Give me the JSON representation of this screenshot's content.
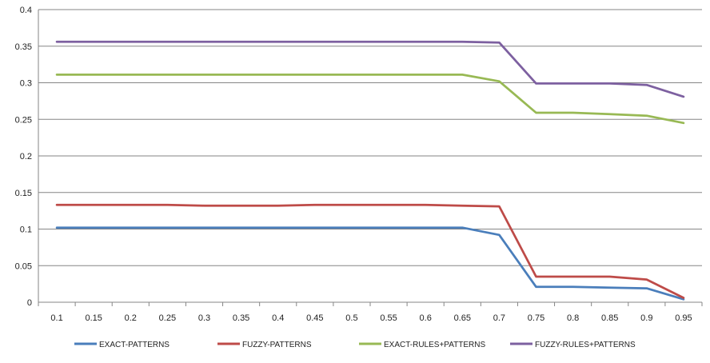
{
  "chart_data": {
    "type": "line",
    "title": "",
    "xlabel": "",
    "ylabel": "",
    "categories": [
      "0.1",
      "0.15",
      "0.2",
      "0.25",
      "0.3",
      "0.35",
      "0.4",
      "0.45",
      "0.5",
      "0.55",
      "0.6",
      "0.65",
      "0.7",
      "0.75",
      "0.8",
      "0.85",
      "0.9",
      "0.95"
    ],
    "ylim": [
      0,
      0.4
    ],
    "yticks": [
      "0",
      "0.05",
      "0.1",
      "0.15",
      "0.2",
      "0.25",
      "0.3",
      "0.35",
      "0.4"
    ],
    "grid": "horizontal",
    "legend_position": "bottom",
    "series": [
      {
        "name": "EXACT-PATTERNS",
        "color": "#4a7ebb",
        "values": [
          0.102,
          0.102,
          0.102,
          0.102,
          0.102,
          0.102,
          0.102,
          0.102,
          0.102,
          0.102,
          0.102,
          0.102,
          0.092,
          0.021,
          0.021,
          0.02,
          0.019,
          0.004
        ]
      },
      {
        "name": "FUZZY-PATTERNS",
        "color": "#be4b48",
        "values": [
          0.133,
          0.133,
          0.133,
          0.133,
          0.132,
          0.132,
          0.132,
          0.133,
          0.133,
          0.133,
          0.133,
          0.132,
          0.131,
          0.035,
          0.035,
          0.035,
          0.031,
          0.006
        ]
      },
      {
        "name": "EXACT-RULES+PATTERNS",
        "color": "#98b954",
        "values": [
          0.311,
          0.311,
          0.311,
          0.311,
          0.311,
          0.311,
          0.311,
          0.311,
          0.311,
          0.311,
          0.311,
          0.311,
          0.302,
          0.259,
          0.259,
          0.257,
          0.255,
          0.245
        ]
      },
      {
        "name": "FUZZY-RULES+PATTERNS",
        "color": "#7d60a0",
        "values": [
          0.356,
          0.356,
          0.356,
          0.356,
          0.356,
          0.356,
          0.356,
          0.356,
          0.356,
          0.356,
          0.356,
          0.356,
          0.355,
          0.299,
          0.299,
          0.299,
          0.297,
          0.281
        ]
      }
    ]
  }
}
